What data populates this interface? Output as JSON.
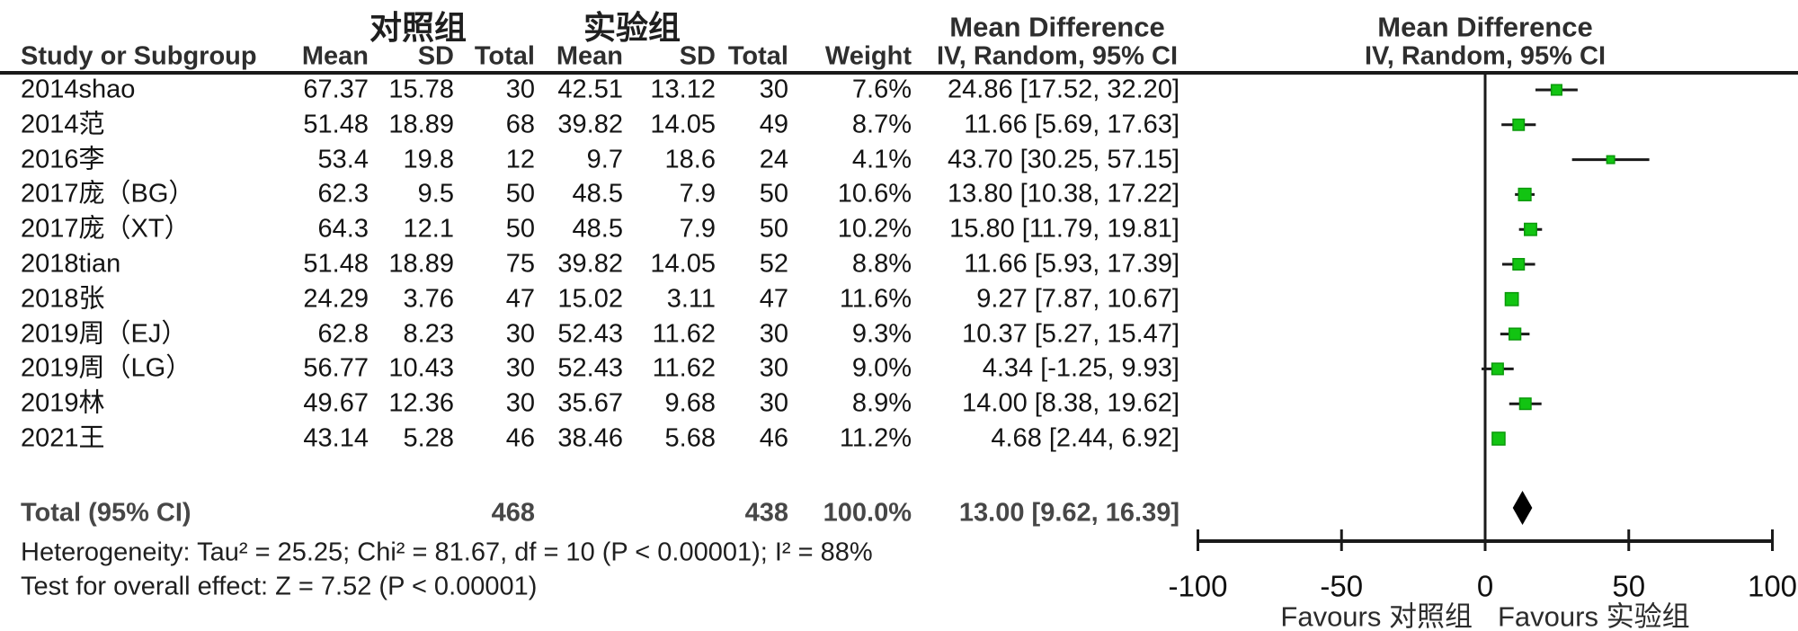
{
  "headers": {
    "study": "Study or Subgroup",
    "control_group": "对照组",
    "experimental_group": "实验组",
    "mean": "Mean",
    "sd": "SD",
    "total": "Total",
    "weight": "Weight",
    "md_line1": "Mean Difference",
    "md_line2": "IV, Random, 95% CI"
  },
  "chart_data": {
    "type": "scatter",
    "variant": "forest-plot",
    "effect_measure": "Mean Difference",
    "model": "IV, Random, 95% CI",
    "x_axis": {
      "range": [
        -100,
        100
      ],
      "tick_values": [
        -100,
        -50,
        0,
        50,
        100
      ],
      "tick_labels": [
        "-100",
        "-50",
        "0",
        "50",
        "100"
      ],
      "favours_left": "Favours 对照组",
      "favours_right": "Favours 实验组"
    },
    "studies": [
      {
        "label": "2014shao",
        "mean_c": "67.37",
        "sd_c": "15.78",
        "total_c": "30",
        "mean_e": "42.51",
        "sd_e": "13.12",
        "total_e": "30",
        "weight": "7.6%",
        "weight_value": 7.6,
        "md_text": "24.86 [17.52, 32.20]",
        "md": 24.86,
        "lo": 17.52,
        "hi": 32.2
      },
      {
        "label": "2014范",
        "mean_c": "51.48",
        "sd_c": "18.89",
        "total_c": "68",
        "mean_e": "39.82",
        "sd_e": "14.05",
        "total_e": "49",
        "weight": "8.7%",
        "weight_value": 8.7,
        "md_text": "11.66 [5.69, 17.63]",
        "md": 11.66,
        "lo": 5.69,
        "hi": 17.63
      },
      {
        "label": "2016李",
        "mean_c": "53.4",
        "sd_c": "19.8",
        "total_c": "12",
        "mean_e": "9.7",
        "sd_e": "18.6",
        "total_e": "24",
        "weight": "4.1%",
        "weight_value": 4.1,
        "md_text": "43.70 [30.25, 57.15]",
        "md": 43.7,
        "lo": 30.25,
        "hi": 57.15
      },
      {
        "label": "2017庞（BG）",
        "mean_c": "62.3",
        "sd_c": "9.5",
        "total_c": "50",
        "mean_e": "48.5",
        "sd_e": "7.9",
        "total_e": "50",
        "weight": "10.6%",
        "weight_value": 10.6,
        "md_text": "13.80 [10.38, 17.22]",
        "md": 13.8,
        "lo": 10.38,
        "hi": 17.22
      },
      {
        "label": "2017庞（XT）",
        "mean_c": "64.3",
        "sd_c": "12.1",
        "total_c": "50",
        "mean_e": "48.5",
        "sd_e": "7.9",
        "total_e": "50",
        "weight": "10.2%",
        "weight_value": 10.2,
        "md_text": "15.80 [11.79, 19.81]",
        "md": 15.8,
        "lo": 11.79,
        "hi": 19.81
      },
      {
        "label": "2018tian",
        "mean_c": "51.48",
        "sd_c": "18.89",
        "total_c": "75",
        "mean_e": "39.82",
        "sd_e": "14.05",
        "total_e": "52",
        "weight": "8.8%",
        "weight_value": 8.8,
        "md_text": "11.66 [5.93, 17.39]",
        "md": 11.66,
        "lo": 5.93,
        "hi": 17.39
      },
      {
        "label": "2018张",
        "mean_c": "24.29",
        "sd_c": "3.76",
        "total_c": "47",
        "mean_e": "15.02",
        "sd_e": "3.11",
        "total_e": "47",
        "weight": "11.6%",
        "weight_value": 11.6,
        "md_text": "9.27 [7.87, 10.67]",
        "md": 9.27,
        "lo": 7.87,
        "hi": 10.67
      },
      {
        "label": "2019周（EJ）",
        "mean_c": "62.8",
        "sd_c": "8.23",
        "total_c": "30",
        "mean_e": "52.43",
        "sd_e": "11.62",
        "total_e": "30",
        "weight": "9.3%",
        "weight_value": 9.3,
        "md_text": "10.37 [5.27, 15.47]",
        "md": 10.37,
        "lo": 5.27,
        "hi": 15.47
      },
      {
        "label": "2019周（LG）",
        "mean_c": "56.77",
        "sd_c": "10.43",
        "total_c": "30",
        "mean_e": "52.43",
        "sd_e": "11.62",
        "total_e": "30",
        "weight": "9.0%",
        "weight_value": 9.0,
        "md_text": "4.34 [-1.25, 9.93]",
        "md": 4.34,
        "lo": -1.25,
        "hi": 9.93
      },
      {
        "label": "2019林",
        "mean_c": "49.67",
        "sd_c": "12.36",
        "total_c": "30",
        "mean_e": "35.67",
        "sd_e": "9.68",
        "total_e": "30",
        "weight": "8.9%",
        "weight_value": 8.9,
        "md_text": "14.00 [8.38, 19.62]",
        "md": 14.0,
        "lo": 8.38,
        "hi": 19.62
      },
      {
        "label": "2021王",
        "mean_c": "43.14",
        "sd_c": "5.28",
        "total_c": "46",
        "mean_e": "38.46",
        "sd_e": "5.68",
        "total_e": "46",
        "weight": "11.2%",
        "weight_value": 11.2,
        "md_text": "4.68 [2.44, 6.92]",
        "md": 4.68,
        "lo": 2.44,
        "hi": 6.92
      }
    ],
    "total": {
      "label": "Total (95% CI)",
      "total_c": "468",
      "total_e": "438",
      "weight": "100.0%",
      "md_text": "13.00 [9.62, 16.39]",
      "md": 13.0,
      "lo": 9.62,
      "hi": 16.39
    }
  },
  "footer": {
    "heterogeneity": "Heterogeneity: Tau² = 25.25; Chi² = 81.67, df = 10 (P < 0.00001); I² = 88%",
    "overall_effect": "Test for overall effect: Z = 7.52 (P < 0.00001)"
  },
  "colors": {
    "square_fill": "#12c412",
    "square_border": "#0a990a",
    "diamond": "#000000",
    "line": "#1a1a1a"
  }
}
